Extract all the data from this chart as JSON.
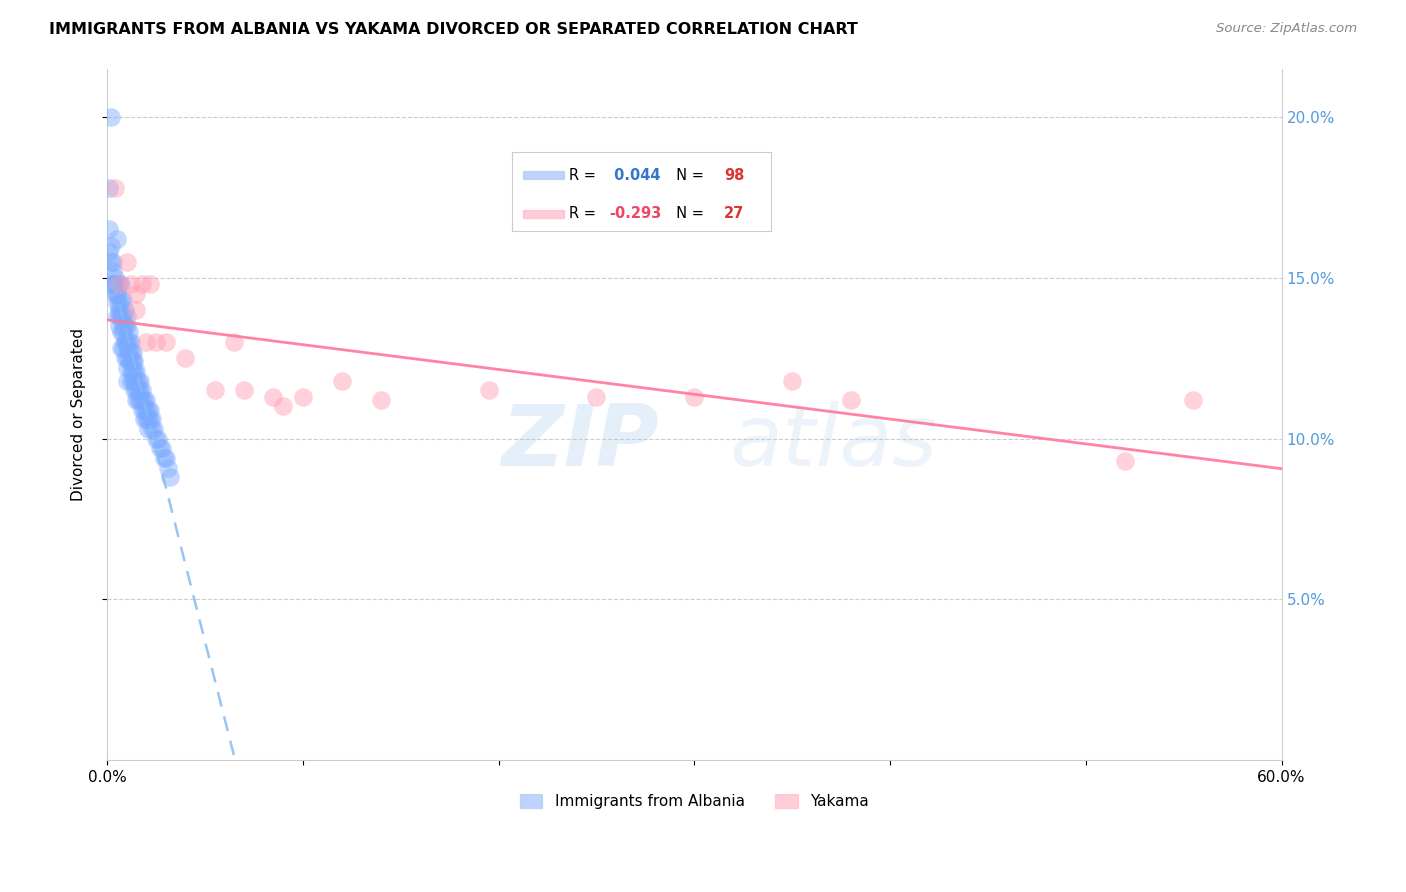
{
  "title": "IMMIGRANTS FROM ALBANIA VS YAKAMA DIVORCED OR SEPARATED CORRELATION CHART",
  "source": "Source: ZipAtlas.com",
  "ylabel": "Divorced or Separated",
  "legend_albania": "Immigrants from Albania",
  "legend_yakama": "Yakama",
  "r_albania": 0.044,
  "n_albania": 98,
  "r_yakama": -0.293,
  "n_yakama": 27,
  "watermark_zip": "ZIP",
  "watermark_atlas": "atlas",
  "xlim": [
    0.0,
    0.6
  ],
  "ylim": [
    0.0,
    0.215
  ],
  "yticks": [
    0.05,
    0.1,
    0.15,
    0.2
  ],
  "ytick_labels": [
    "5.0%",
    "10.0%",
    "15.0%",
    "20.0%"
  ],
  "color_albania": "#7aaaff",
  "color_yakama": "#ff9ab0",
  "trendline_albania_color": "#88bbee",
  "trendline_yakama_color": "#ff7799",
  "albania_x": [
    0.002,
    0.003,
    0.003,
    0.004,
    0.004,
    0.005,
    0.005,
    0.005,
    0.006,
    0.006,
    0.006,
    0.006,
    0.007,
    0.007,
    0.007,
    0.007,
    0.007,
    0.008,
    0.008,
    0.008,
    0.008,
    0.009,
    0.009,
    0.009,
    0.009,
    0.01,
    0.01,
    0.01,
    0.01,
    0.01,
    0.01,
    0.01,
    0.011,
    0.011,
    0.011,
    0.011,
    0.012,
    0.012,
    0.012,
    0.012,
    0.012,
    0.013,
    0.013,
    0.013,
    0.013,
    0.014,
    0.014,
    0.014,
    0.014,
    0.015,
    0.015,
    0.015,
    0.015,
    0.016,
    0.016,
    0.016,
    0.017,
    0.017,
    0.017,
    0.018,
    0.018,
    0.018,
    0.019,
    0.019,
    0.019,
    0.02,
    0.02,
    0.02,
    0.021,
    0.021,
    0.021,
    0.022,
    0.022,
    0.023,
    0.023,
    0.024,
    0.025,
    0.026,
    0.027,
    0.028,
    0.029,
    0.03,
    0.031,
    0.032,
    0.001,
    0.001,
    0.001,
    0.002,
    0.002,
    0.003,
    0.003,
    0.004,
    0.005,
    0.005,
    0.006,
    0.007,
    0.008,
    0.009
  ],
  "albania_y": [
    0.2,
    0.155,
    0.148,
    0.15,
    0.145,
    0.162,
    0.145,
    0.138,
    0.148,
    0.142,
    0.138,
    0.135,
    0.148,
    0.143,
    0.138,
    0.133,
    0.128,
    0.143,
    0.138,
    0.133,
    0.128,
    0.14,
    0.135,
    0.13,
    0.125,
    0.138,
    0.135,
    0.13,
    0.128,
    0.125,
    0.122,
    0.118,
    0.133,
    0.13,
    0.127,
    0.124,
    0.13,
    0.127,
    0.124,
    0.121,
    0.118,
    0.127,
    0.124,
    0.121,
    0.118,
    0.124,
    0.121,
    0.118,
    0.115,
    0.121,
    0.118,
    0.115,
    0.112,
    0.118,
    0.115,
    0.112,
    0.118,
    0.115,
    0.112,
    0.115,
    0.112,
    0.109,
    0.112,
    0.109,
    0.106,
    0.112,
    0.109,
    0.106,
    0.109,
    0.106,
    0.103,
    0.109,
    0.106,
    0.106,
    0.103,
    0.103,
    0.1,
    0.1,
    0.097,
    0.097,
    0.094,
    0.094,
    0.091,
    0.088,
    0.178,
    0.165,
    0.158,
    0.16,
    0.155,
    0.152,
    0.148,
    0.148,
    0.145,
    0.142,
    0.14,
    0.138,
    0.135,
    0.13
  ],
  "yakama_x": [
    0.004,
    0.006,
    0.01,
    0.012,
    0.015,
    0.015,
    0.018,
    0.02,
    0.022,
    0.025,
    0.03,
    0.04,
    0.055,
    0.065,
    0.07,
    0.085,
    0.09,
    0.1,
    0.12,
    0.14,
    0.195,
    0.35,
    0.38,
    0.52,
    0.555,
    0.25,
    0.3
  ],
  "yakama_y": [
    0.178,
    0.148,
    0.155,
    0.148,
    0.145,
    0.14,
    0.148,
    0.13,
    0.148,
    0.13,
    0.13,
    0.125,
    0.115,
    0.13,
    0.115,
    0.113,
    0.11,
    0.113,
    0.118,
    0.112,
    0.115,
    0.118,
    0.112,
    0.093,
    0.112,
    0.113,
    0.113
  ]
}
